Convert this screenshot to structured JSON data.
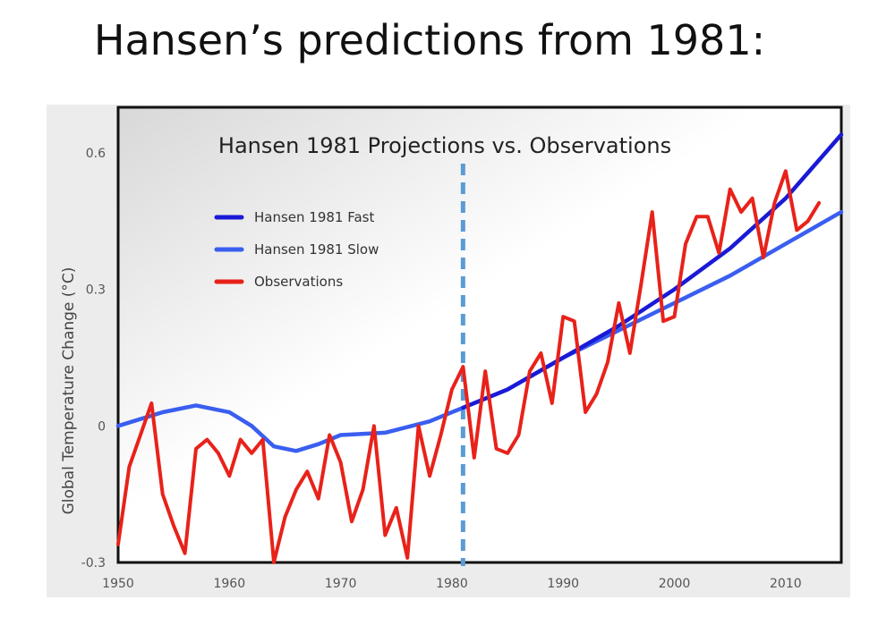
{
  "slide": {
    "title": "Hansen’s predictions from 1981:"
  },
  "chart_data": {
    "type": "line",
    "title": "Hansen 1981 Projections vs. Observations",
    "xlabel": "",
    "ylabel": "Global Temperature Change (°C)",
    "xlim": [
      1950,
      2015
    ],
    "ylim": [
      -0.3,
      0.7
    ],
    "xticks": [
      1950,
      1960,
      1970,
      1980,
      1990,
      2000,
      2010
    ],
    "yticks": [
      -0.3,
      0,
      0.3,
      0.6
    ],
    "ytick_labels": [
      "-0.3",
      "0",
      "0.3",
      "0.6"
    ],
    "grid": false,
    "legend_position": "upper-left",
    "marker_line": {
      "x": 1981,
      "style": "dashed",
      "color": "#5b9bd5"
    },
    "series": [
      {
        "name": "Hansen 1981 Fast",
        "color": "#1a1ad6",
        "x": [
          1981,
          1985,
          1990,
          1995,
          2000,
          2005,
          2010,
          2015
        ],
        "y": [
          0.04,
          0.08,
          0.15,
          0.22,
          0.3,
          0.39,
          0.5,
          0.64
        ]
      },
      {
        "name": "Hansen 1981 Slow",
        "color": "#3a5ef0",
        "x": [
          1950,
          1954,
          1957,
          1960,
          1962,
          1964,
          1966,
          1968,
          1970,
          1974,
          1978,
          1981,
          1985,
          1990,
          1995,
          2000,
          2005,
          2010,
          2015
        ],
        "y": [
          0.0,
          0.03,
          0.045,
          0.03,
          0.0,
          -0.045,
          -0.055,
          -0.04,
          -0.02,
          -0.015,
          0.01,
          0.04,
          0.08,
          0.15,
          0.21,
          0.27,
          0.33,
          0.4,
          0.47
        ]
      },
      {
        "name": "Observations",
        "color": "#e8221a",
        "x": [
          1950,
          1951,
          1952,
          1953,
          1954,
          1955,
          1956,
          1957,
          1958,
          1959,
          1960,
          1961,
          1962,
          1963,
          1964,
          1965,
          1966,
          1967,
          1968,
          1969,
          1970,
          1971,
          1972,
          1973,
          1974,
          1975,
          1976,
          1977,
          1978,
          1979,
          1980,
          1981,
          1982,
          1983,
          1984,
          1985,
          1986,
          1987,
          1988,
          1989,
          1990,
          1991,
          1992,
          1993,
          1994,
          1995,
          1996,
          1997,
          1998,
          1999,
          2000,
          2001,
          2002,
          2003,
          2004,
          2005,
          2006,
          2007,
          2008,
          2009,
          2010,
          2011,
          2012,
          2013
        ],
        "y": [
          -0.26,
          -0.09,
          -0.02,
          0.05,
          -0.15,
          -0.22,
          -0.28,
          -0.05,
          -0.03,
          -0.06,
          -0.11,
          -0.03,
          -0.06,
          -0.03,
          -0.3,
          -0.2,
          -0.14,
          -0.1,
          -0.16,
          -0.02,
          -0.08,
          -0.21,
          -0.14,
          0.0,
          -0.24,
          -0.18,
          -0.29,
          0.0,
          -0.11,
          -0.02,
          0.08,
          0.13,
          -0.07,
          0.12,
          -0.05,
          -0.06,
          -0.02,
          0.12,
          0.16,
          0.05,
          0.24,
          0.23,
          0.03,
          0.07,
          0.14,
          0.27,
          0.16,
          0.31,
          0.47,
          0.23,
          0.24,
          0.4,
          0.46,
          0.46,
          0.38,
          0.52,
          0.47,
          0.5,
          0.37,
          0.49,
          0.56,
          0.43,
          0.45,
          0.49
        ]
      }
    ]
  }
}
